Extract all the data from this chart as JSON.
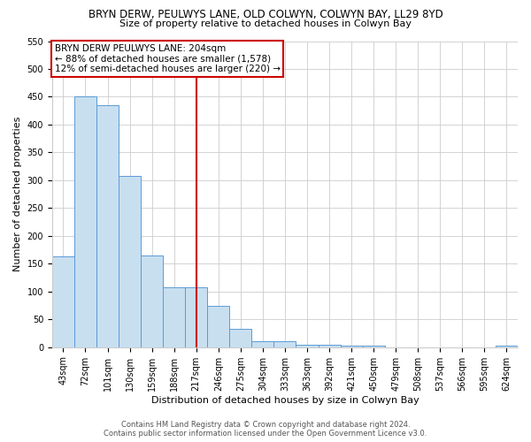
{
  "title": "BRYN DERW, PEULWYS LANE, OLD COLWYN, COLWYN BAY, LL29 8YD",
  "subtitle": "Size of property relative to detached houses in Colwyn Bay",
  "xlabel": "Distribution of detached houses by size in Colwyn Bay",
  "ylabel": "Number of detached properties",
  "bar_labels": [
    "43sqm",
    "72sqm",
    "101sqm",
    "130sqm",
    "159sqm",
    "188sqm",
    "217sqm",
    "246sqm",
    "275sqm",
    "304sqm",
    "333sqm",
    "363sqm",
    "392sqm",
    "421sqm",
    "450sqm",
    "479sqm",
    "508sqm",
    "537sqm",
    "566sqm",
    "595sqm",
    "624sqm"
  ],
  "bar_values": [
    163,
    450,
    435,
    308,
    165,
    107,
    107,
    74,
    33,
    10,
    10,
    5,
    5,
    3,
    3,
    0,
    0,
    0,
    0,
    0,
    3
  ],
  "bar_color": "#c8dff0",
  "bar_edge_color": "#5b9bd5",
  "vline_x_index": 6,
  "vline_color": "#cc0000",
  "ylim": [
    0,
    550
  ],
  "yticks": [
    0,
    50,
    100,
    150,
    200,
    250,
    300,
    350,
    400,
    450,
    500,
    550
  ],
  "annotation_title": "BRYN DERW PEULWYS LANE: 204sqm",
  "annotation_line1": "← 88% of detached houses are smaller (1,578)",
  "annotation_line2": "12% of semi-detached houses are larger (220) →",
  "annotation_box_color": "white",
  "annotation_box_edge": "#cc0000",
  "footer1": "Contains HM Land Registry data © Crown copyright and database right 2024.",
  "footer2": "Contains public sector information licensed under the Open Government Licence v3.0.",
  "bg_color": "white",
  "grid_color": "#cccccc",
  "title_fontsize": 8.5,
  "subtitle_fontsize": 8,
  "xlabel_fontsize": 8,
  "ylabel_fontsize": 8,
  "tick_fontsize": 7,
  "ann_fontsize": 7.5,
  "footer_fontsize": 6
}
